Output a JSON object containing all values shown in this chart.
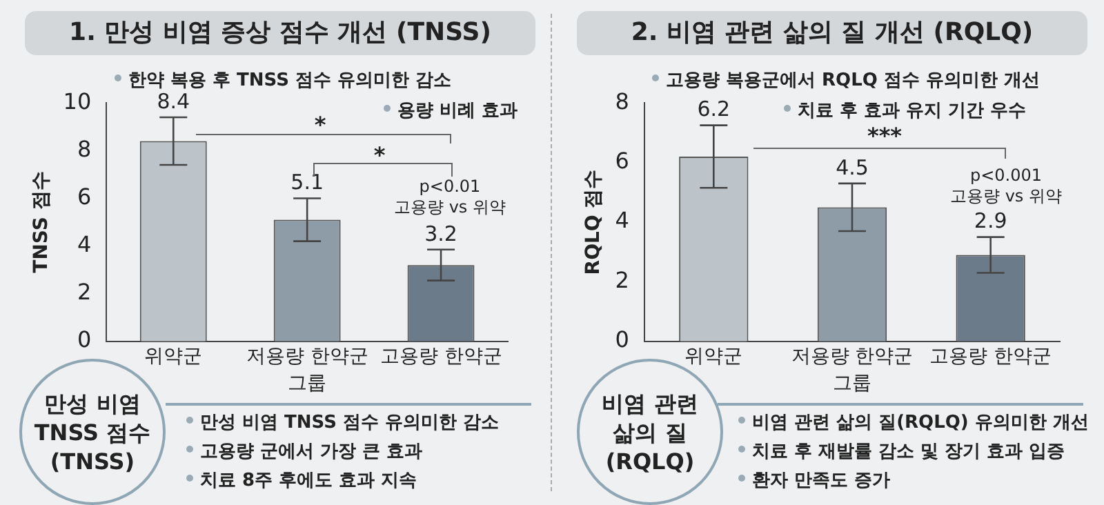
{
  "chart_data": [
    {
      "type": "bar",
      "title": "1. 만성 비염 증상 점수 개선 (TNSS)",
      "xlabel": "그룹",
      "ylabel": "TNSS 점수",
      "categories": [
        "위약군",
        "저용량 한약군",
        "고용량 한약군"
      ],
      "values": [
        8.4,
        5.1,
        3.2
      ],
      "colors": [
        "#bcc4ca",
        "#8e9ca8",
        "#6c7b89"
      ],
      "errors": [
        1.0,
        0.9,
        0.65
      ],
      "data_labels": true,
      "ylim": [
        0,
        10
      ],
      "yticks": [
        0,
        2,
        4,
        6,
        8,
        10
      ],
      "grid": false,
      "legend": false,
      "annotations": [
        "한약 복용 후 TNSS 점수 유의미한 감소",
        "용량 비례 효과",
        "*",
        "*",
        "p<0.01\n고용량 vs 위약",
        "만성 비염\nTNSS 점수\n(TNSS)",
        "만성 비염 TNSS 점수 유의미한 감소",
        "고용량 군에서 가장 큰 효과",
        "치료 8주 후에도 효과 지속"
      ]
    },
    {
      "type": "bar",
      "title": "2. 비염 관련 삶의 질 개선 (RQLQ)",
      "xlabel": "그룹",
      "ylabel": "RQLQ 점수",
      "categories": [
        "위약군",
        "저용량 한약군",
        "고용량 한약군"
      ],
      "values": [
        6.2,
        4.5,
        2.9
      ],
      "colors": [
        "#bcc4ca",
        "#8e9ca8",
        "#6c7b89"
      ],
      "errors": [
        1.05,
        0.8,
        0.6
      ],
      "data_labels": true,
      "ylim": [
        0,
        8
      ],
      "yticks": [
        0,
        2,
        4,
        6,
        8
      ],
      "grid": false,
      "legend": false,
      "annotations": [
        "고용량 복용군에서 RQLQ 점수 유의미한 개선",
        "치료 후 효과 유지 기간 우수",
        "***",
        "p<0.001\n고용량 vs 위약",
        "비염 관련\n삶의 질\n(RQLQ)",
        "비염 관련 삶의 질(RQLQ) 유의미한 개선",
        "치료 후 재발률 감소 및 장기 효과 입증",
        "환자 만족도 증가"
      ]
    }
  ]
}
